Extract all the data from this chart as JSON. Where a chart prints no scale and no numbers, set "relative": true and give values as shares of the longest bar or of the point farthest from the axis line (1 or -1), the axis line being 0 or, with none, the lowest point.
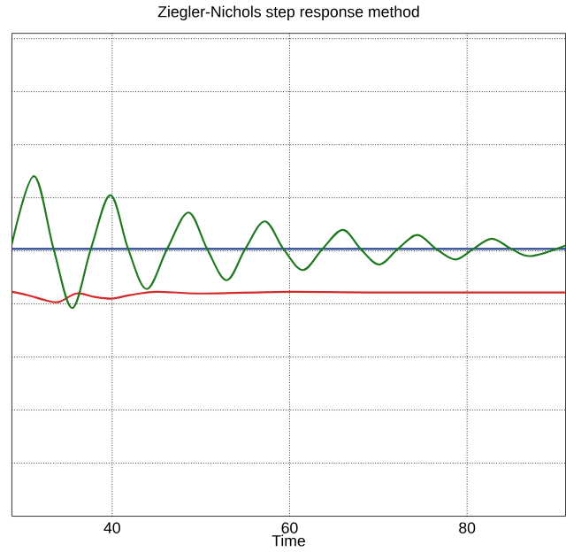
{
  "chart_data": {
    "type": "line",
    "title": "Ziegler-Nichols step response method",
    "xlabel": "Time",
    "relative": true,
    "xlim": [
      28.7,
      91.1
    ],
    "xticks": [
      40,
      60,
      80
    ],
    "grid": true,
    "tick_labels": "x",
    "series": [
      {
        "color": "#1f3f8f",
        "x": [
          28.7,
          91.1
        ],
        "values": [
          0.786,
          0.786
        ]
      },
      {
        "color": "#d42a2a",
        "x": [
          28.7,
          30.5,
          32.5,
          34.0,
          36.0,
          38.0,
          40.0,
          42.0,
          45.0,
          50.0,
          60.0,
          70.0,
          91.1
        ],
        "values": [
          0.66,
          0.65,
          0.635,
          0.63,
          0.655,
          0.645,
          0.64,
          0.65,
          0.66,
          0.655,
          0.66,
          0.658,
          0.658
        ]
      },
      {
        "color": "#1f7a1f",
        "x": [
          28.7,
          31.2,
          33.4,
          35.5,
          37.6,
          39.8,
          41.8,
          43.9,
          46.2,
          48.6,
          50.7,
          52.9,
          55.0,
          57.2,
          59.3,
          61.5,
          63.7,
          66.0,
          68.0,
          70.1,
          72.2,
          74.4,
          76.5,
          78.7,
          80.7,
          82.8,
          85.0,
          87.2,
          91.1
        ],
        "values": [
          0.8,
          1.0,
          0.786,
          0.612,
          0.786,
          0.944,
          0.786,
          0.668,
          0.786,
          0.893,
          0.786,
          0.694,
          0.786,
          0.867,
          0.786,
          0.724,
          0.786,
          0.842,
          0.786,
          0.74,
          0.786,
          0.827,
          0.786,
          0.755,
          0.786,
          0.816,
          0.786,
          0.765,
          0.796
        ]
      }
    ]
  }
}
